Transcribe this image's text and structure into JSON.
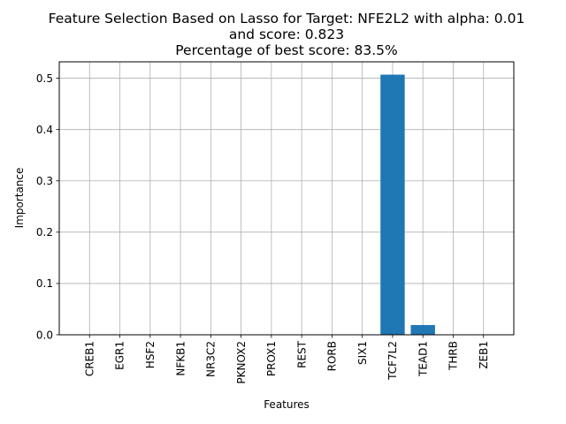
{
  "chart_data": {
    "type": "bar",
    "title_lines": [
      "Feature Selection Based on Lasso for Target: NFE2L2 with alpha: 0.01",
      "and score: 0.823",
      "Percentage of best score: 83.5%"
    ],
    "xlabel": "Features",
    "ylabel": "Importance",
    "categories": [
      "CREB1",
      "EGR1",
      "HSF2",
      "NFKB1",
      "NR3C2",
      "PKNOX2",
      "PROX1",
      "REST",
      "RORB",
      "SIX1",
      "TCF7L2",
      "TEAD1",
      "THRB",
      "ZEB1"
    ],
    "values": [
      0,
      0,
      0,
      0,
      0,
      0,
      0,
      0,
      0,
      0,
      0.507,
      0.019,
      0,
      0
    ],
    "ylim": [
      0,
      0.532
    ],
    "yticks": [
      0.0,
      0.1,
      0.2,
      0.3,
      0.4,
      0.5
    ],
    "ytick_labels": [
      "0.0",
      "0.1",
      "0.2",
      "0.3",
      "0.4",
      "0.5"
    ],
    "grid": true,
    "bar_color": "#1f77b4",
    "grid_color": "#b0b0b0"
  }
}
